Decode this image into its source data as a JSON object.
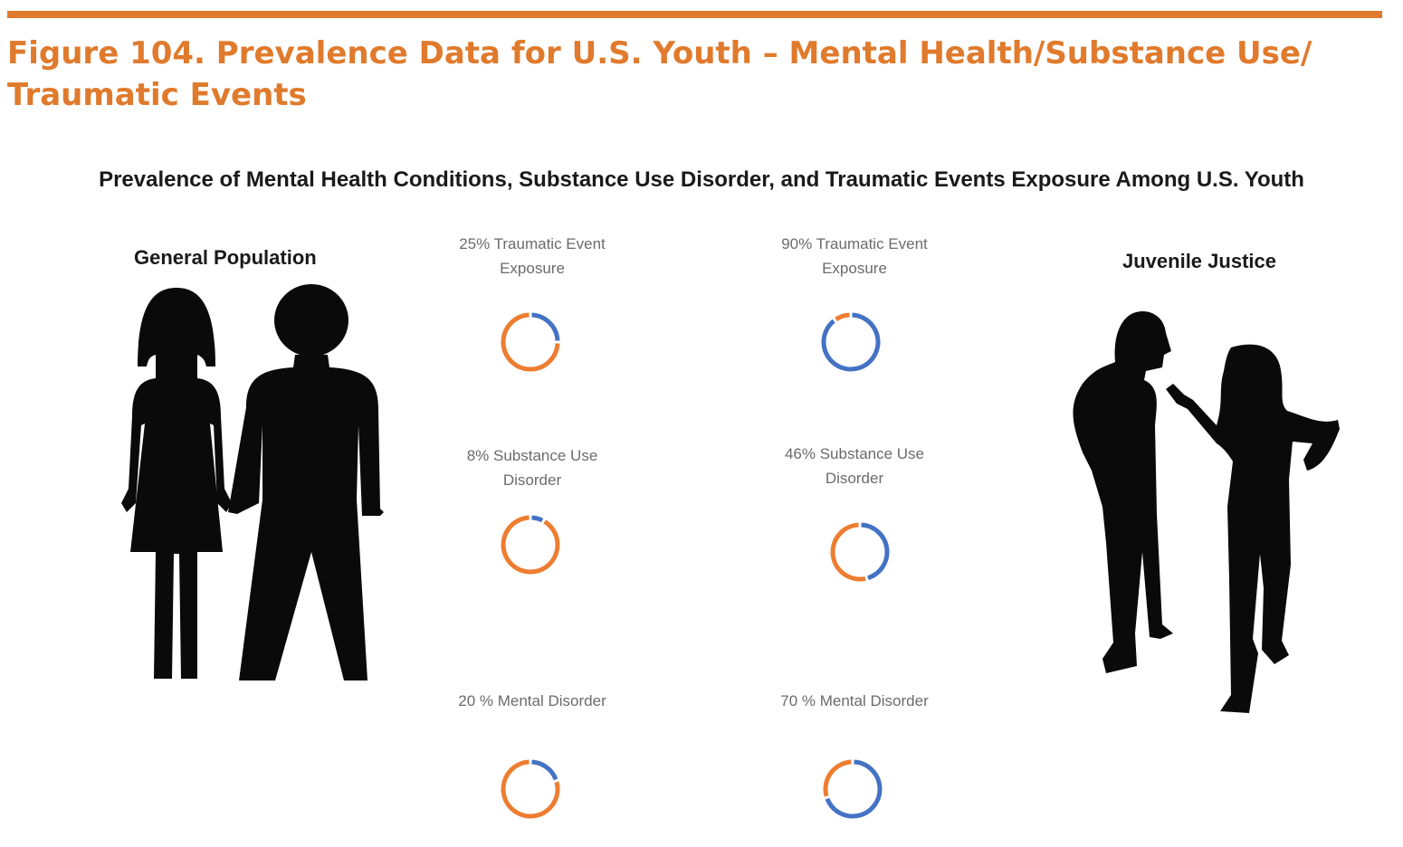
{
  "figure": {
    "title": "Figure 104. Prevalence Data for U.S. Youth – Mental Health/Substance Use/ Traumatic Events"
  },
  "chart_data": {
    "type": "pie",
    "title": "Prevalence of Mental Health Conditions, Substance Use Disorder, and Traumatic Events Exposure Among U.S. Youth",
    "groups": [
      {
        "label": "General Population",
        "items": [
          {
            "label": "25% Traumatic Event Exposure",
            "value": 25
          },
          {
            "label": "8% Substance Use Disorder",
            "value": 8
          },
          {
            "label": "20 % Mental Disorder",
            "value": 20
          }
        ]
      },
      {
        "label": "Juvenile Justice",
        "items": [
          {
            "label": "90% Traumatic Event Exposure",
            "value": 90
          },
          {
            "label": "46% Substance Use Disorder",
            "value": 46
          },
          {
            "label": "70 % Mental Disorder",
            "value": 70
          }
        ]
      }
    ],
    "colors": {
      "value": "#4472c4",
      "remainder": "#ed7d31"
    }
  },
  "icons": {
    "general_population": "couple-silhouette-icon",
    "juvenile_justice": "arguing-teens-silhouette-icon"
  }
}
